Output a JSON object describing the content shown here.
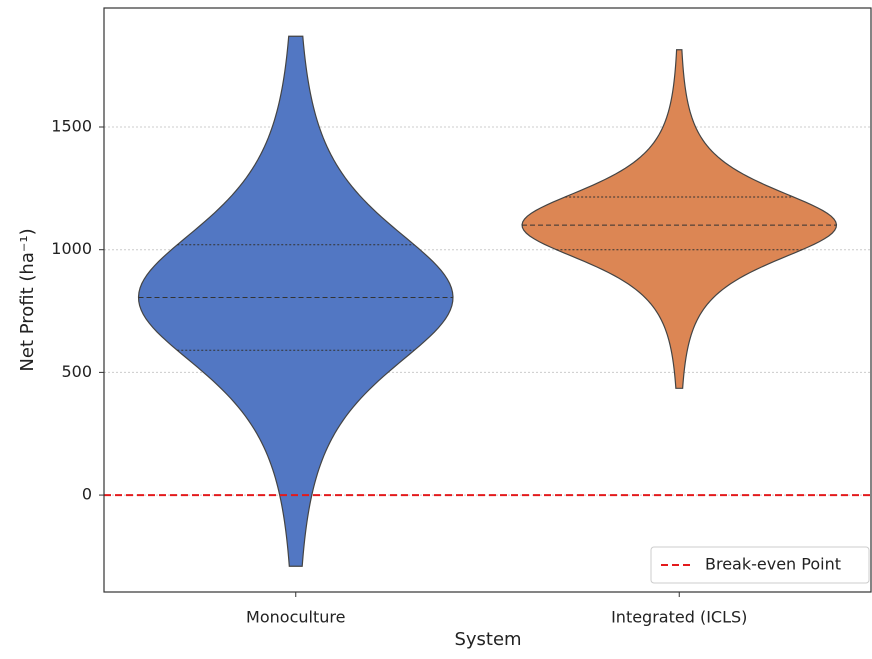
{
  "chart_data": {
    "type": "violin",
    "x_label": "System",
    "y_label": "Net Profit (ha⁻¹)",
    "categories": [
      "Monoculture",
      "Integrated (ICLS)"
    ],
    "colors": [
      "#5277c3",
      "#dc8654"
    ],
    "stats": [
      {
        "min": -290,
        "q1": 590,
        "median": 805,
        "q3": 1020,
        "max": 1870
      },
      {
        "min": 435,
        "q1": 1000,
        "median": 1100,
        "q3": 1215,
        "max": 1815
      }
    ],
    "ylim": [
      -395,
      1985
    ],
    "yticks": [
      0,
      500,
      1000,
      1500
    ],
    "grid": true,
    "reference_line": {
      "value": 0,
      "label": "Break-even Point",
      "color": "#e31a1c"
    },
    "legend_position": "lower right"
  }
}
